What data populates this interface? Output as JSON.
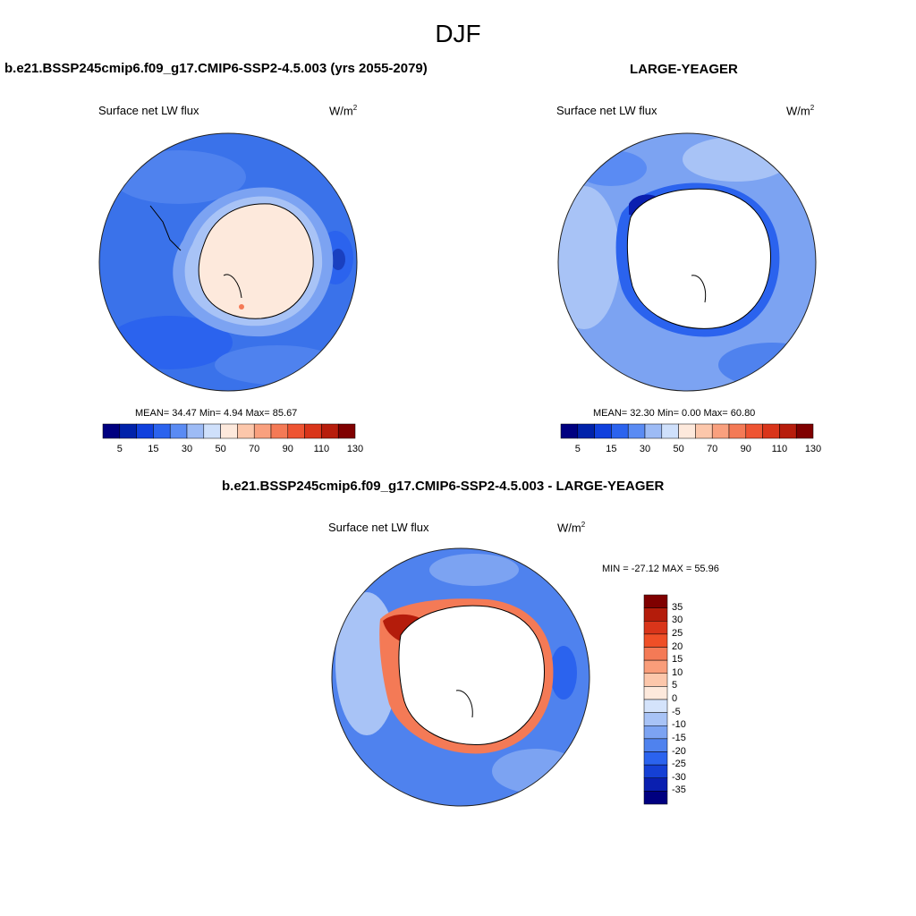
{
  "figure": {
    "title": "DJF"
  },
  "panels": [
    {
      "title": "b.e21.BSSP245cmip6.f09_g17.CMIP6-SSP2-4.5.003 (yrs 2055-2079)",
      "variable": "Surface net LW flux",
      "units": "W/m",
      "units_exp": "2",
      "stats_text": "MEAN=  34.47  Min=   4.94  Max=  85.67",
      "stats": {
        "mean": 34.47,
        "min": 4.94,
        "max": 85.67
      }
    },
    {
      "title": "LARGE-YEAGER",
      "variable": "Surface net LW flux",
      "units": "W/m",
      "units_exp": "2",
      "stats_text": "MEAN=  32.30  Min=   0.00  Max=  60.80",
      "stats": {
        "mean": 32.3,
        "min": 0.0,
        "max": 60.8
      }
    },
    {
      "title": "b.e21.BSSP245cmip6.f09_g17.CMIP6-SSP2-4.5.003 - LARGE-YEAGER",
      "variable": "Surface net LW flux",
      "units": "W/m",
      "units_exp": "2",
      "stats_text": "MIN = -27.12 MAX =  55.96",
      "stats": {
        "min": -27.12,
        "max": 55.96
      }
    }
  ],
  "colorbar_abs": {
    "labels": [
      "5",
      "15",
      "30",
      "50",
      "70",
      "90",
      "110",
      "130"
    ],
    "colors": [
      "#000080",
      "#0022aa",
      "#1040dd",
      "#2b63ee",
      "#5a8bf3",
      "#9dbbf5",
      "#cfe0fb",
      "#fde9dc",
      "#fcc7ab",
      "#f9a07e",
      "#f47a56",
      "#ee5432",
      "#d9351a",
      "#b71d0c",
      "#7f0000"
    ]
  },
  "colorbar_diff": {
    "labels": [
      "35",
      "30",
      "25",
      "20",
      "15",
      "10",
      "5",
      "0",
      "-5",
      "-10",
      "-15",
      "-20",
      "-25",
      "-30",
      "-35"
    ],
    "colors": [
      "#7f0000",
      "#b41c0b",
      "#d9351a",
      "#ef4f27",
      "#f47a56",
      "#f99d7a",
      "#fcc7ab",
      "#fde9dc",
      "#d4e3fb",
      "#a8c3f6",
      "#7ca3f2",
      "#4f82ee",
      "#2b63ee",
      "#1540d5",
      "#0a1fb0",
      "#000080"
    ]
  }
}
